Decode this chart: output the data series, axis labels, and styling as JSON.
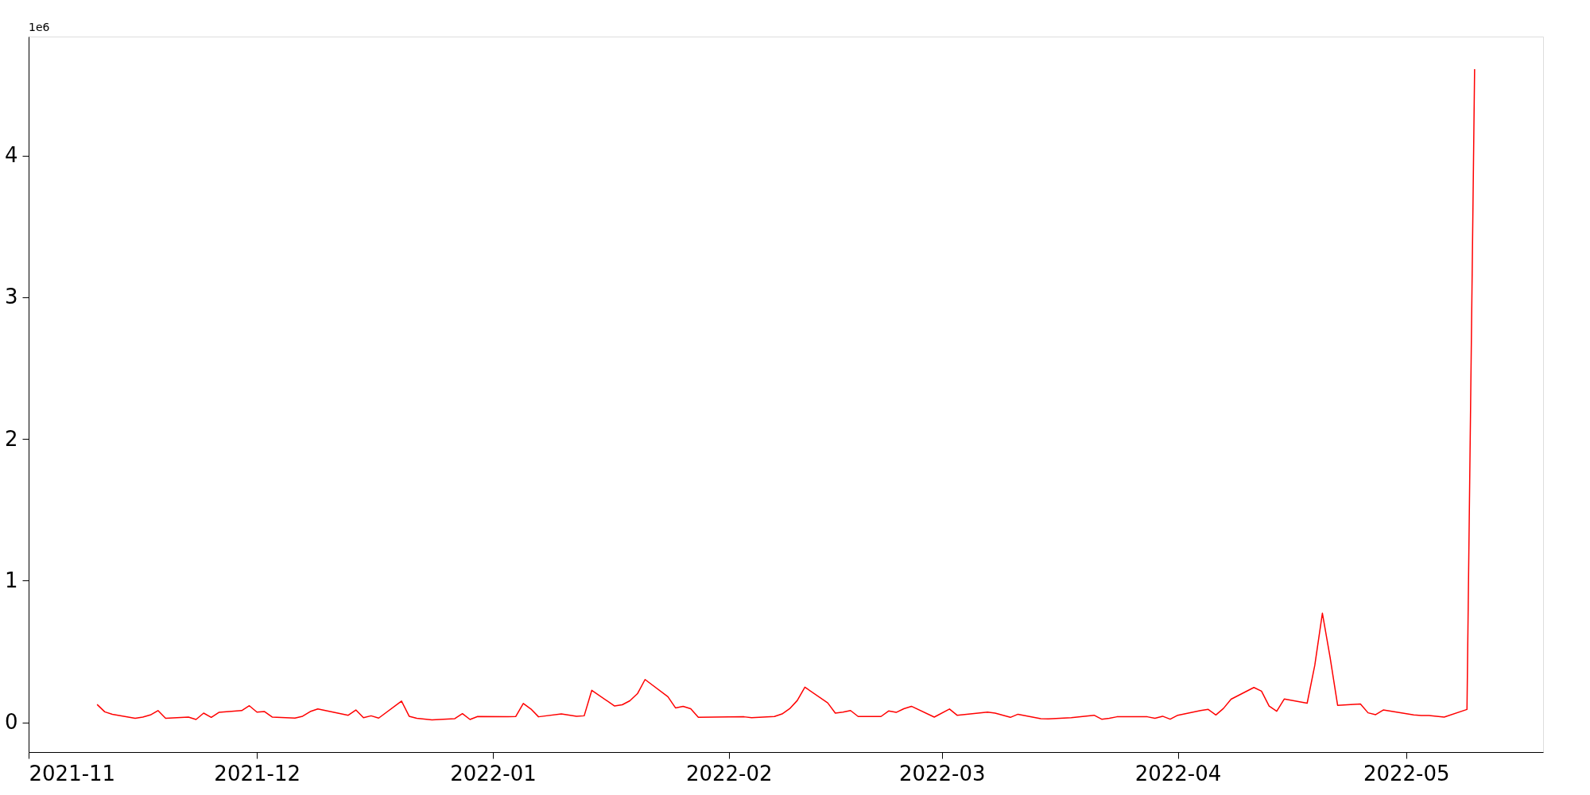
{
  "chart_data": {
    "type": "line",
    "annotations": [
      "1e6"
    ],
    "x": [
      "2021-11-10",
      "2021-11-11",
      "2021-11-12",
      "2021-11-15",
      "2021-11-16",
      "2021-11-17",
      "2021-11-18",
      "2021-11-19",
      "2021-11-22",
      "2021-11-23",
      "2021-11-24",
      "2021-11-25",
      "2021-11-26",
      "2021-11-29",
      "2021-11-30",
      "2021-12-01",
      "2021-12-02",
      "2021-12-03",
      "2021-12-06",
      "2021-12-07",
      "2021-12-08",
      "2021-12-09",
      "2021-12-13",
      "2021-12-14",
      "2021-12-15",
      "2021-12-16",
      "2021-12-17",
      "2021-12-20",
      "2021-12-21",
      "2021-12-22",
      "2021-12-24",
      "2021-12-27",
      "2021-12-28",
      "2021-12-29",
      "2021-12-30",
      "2022-01-03",
      "2022-01-04",
      "2022-01-05",
      "2022-01-06",
      "2022-01-07",
      "2022-01-10",
      "2022-01-12",
      "2022-01-13",
      "2022-01-14",
      "2022-01-17",
      "2022-01-18",
      "2022-01-19",
      "2022-01-20",
      "2022-01-21",
      "2022-01-24",
      "2022-01-25",
      "2022-01-26",
      "2022-01-27",
      "2022-01-28",
      "2022-02-03",
      "2022-02-04",
      "2022-02-07",
      "2022-02-08",
      "2022-02-09",
      "2022-02-10",
      "2022-02-11",
      "2022-02-14",
      "2022-02-15",
      "2022-02-16",
      "2022-02-17",
      "2022-02-18",
      "2022-02-21",
      "2022-02-22",
      "2022-02-23",
      "2022-02-24",
      "2022-02-25",
      "2022-02-28",
      "2022-03-02",
      "2022-03-03",
      "2022-03-07",
      "2022-03-08",
      "2022-03-10",
      "2022-03-11",
      "2022-03-14",
      "2022-03-15",
      "2022-03-18",
      "2022-03-21",
      "2022-03-22",
      "2022-03-23",
      "2022-03-24",
      "2022-03-28",
      "2022-03-29",
      "2022-03-30",
      "2022-03-31",
      "2022-04-01",
      "2022-04-04",
      "2022-04-05",
      "2022-04-06",
      "2022-04-07",
      "2022-04-08",
      "2022-04-11",
      "2022-04-12",
      "2022-04-13",
      "2022-04-14",
      "2022-04-15",
      "2022-04-18",
      "2022-04-19",
      "2022-04-20",
      "2022-04-21",
      "2022-04-22",
      "2022-04-25",
      "2022-04-26",
      "2022-04-27",
      "2022-04-28",
      "2022-05-02",
      "2022-05-03",
      "2022-05-04",
      "2022-05-06",
      "2022-05-09",
      "2022-05-10"
    ],
    "series": [
      {
        "color": "#ff0000",
        "values": [
          0.126,
          0.074,
          0.057,
          0.028,
          0.037,
          0.052,
          0.083,
          0.028,
          0.037,
          0.02,
          0.065,
          0.035,
          0.07,
          0.083,
          0.117,
          0.072,
          0.076,
          0.037,
          0.03,
          0.043,
          0.076,
          0.094,
          0.05,
          0.087,
          0.033,
          0.046,
          0.03,
          0.15,
          0.043,
          0.028,
          0.017,
          0.026,
          0.061,
          0.02,
          0.041,
          0.039,
          0.041,
          0.133,
          0.094,
          0.039,
          0.059,
          0.043,
          0.046,
          0.226,
          0.115,
          0.124,
          0.152,
          0.202,
          0.302,
          0.181,
          0.102,
          0.113,
          0.096,
          0.035,
          0.039,
          0.033,
          0.041,
          0.059,
          0.096,
          0.154,
          0.248,
          0.137,
          0.065,
          0.072,
          0.083,
          0.041,
          0.041,
          0.08,
          0.07,
          0.096,
          0.113,
          0.037,
          0.094,
          0.05,
          0.072,
          0.065,
          0.035,
          0.057,
          0.026,
          0.024,
          0.033,
          0.05,
          0.022,
          0.028,
          0.039,
          0.039,
          0.028,
          0.043,
          0.022,
          0.05,
          0.083,
          0.091,
          0.052,
          0.098,
          0.163,
          0.246,
          0.22,
          0.115,
          0.078,
          0.165,
          0.135,
          0.402,
          0.77,
          0.463,
          0.12,
          0.13,
          0.067,
          0.054,
          0.087,
          0.052,
          0.048,
          0.048,
          0.037,
          0.091,
          4.61
        ]
      }
    ],
    "xlim": [
      "2021-11-01",
      "2022-05-19"
    ],
    "xticks": [
      {
        "value": "2021-11-01",
        "label": "2021-11"
      },
      {
        "value": "2021-12-01",
        "label": "2021-12"
      },
      {
        "value": "2022-01-01",
        "label": "2022-01"
      },
      {
        "value": "2022-02-01",
        "label": "2022-02"
      },
      {
        "value": "2022-03-01",
        "label": "2022-03"
      },
      {
        "value": "2022-04-01",
        "label": "2022-04"
      },
      {
        "value": "2022-05-01",
        "label": "2022-05"
      }
    ],
    "ylim": [
      -0.21,
      4.84
    ],
    "yticks": [
      0,
      1,
      2,
      3,
      4
    ],
    "grid": false,
    "legend": false,
    "marker": "none",
    "line_style": "solid"
  }
}
